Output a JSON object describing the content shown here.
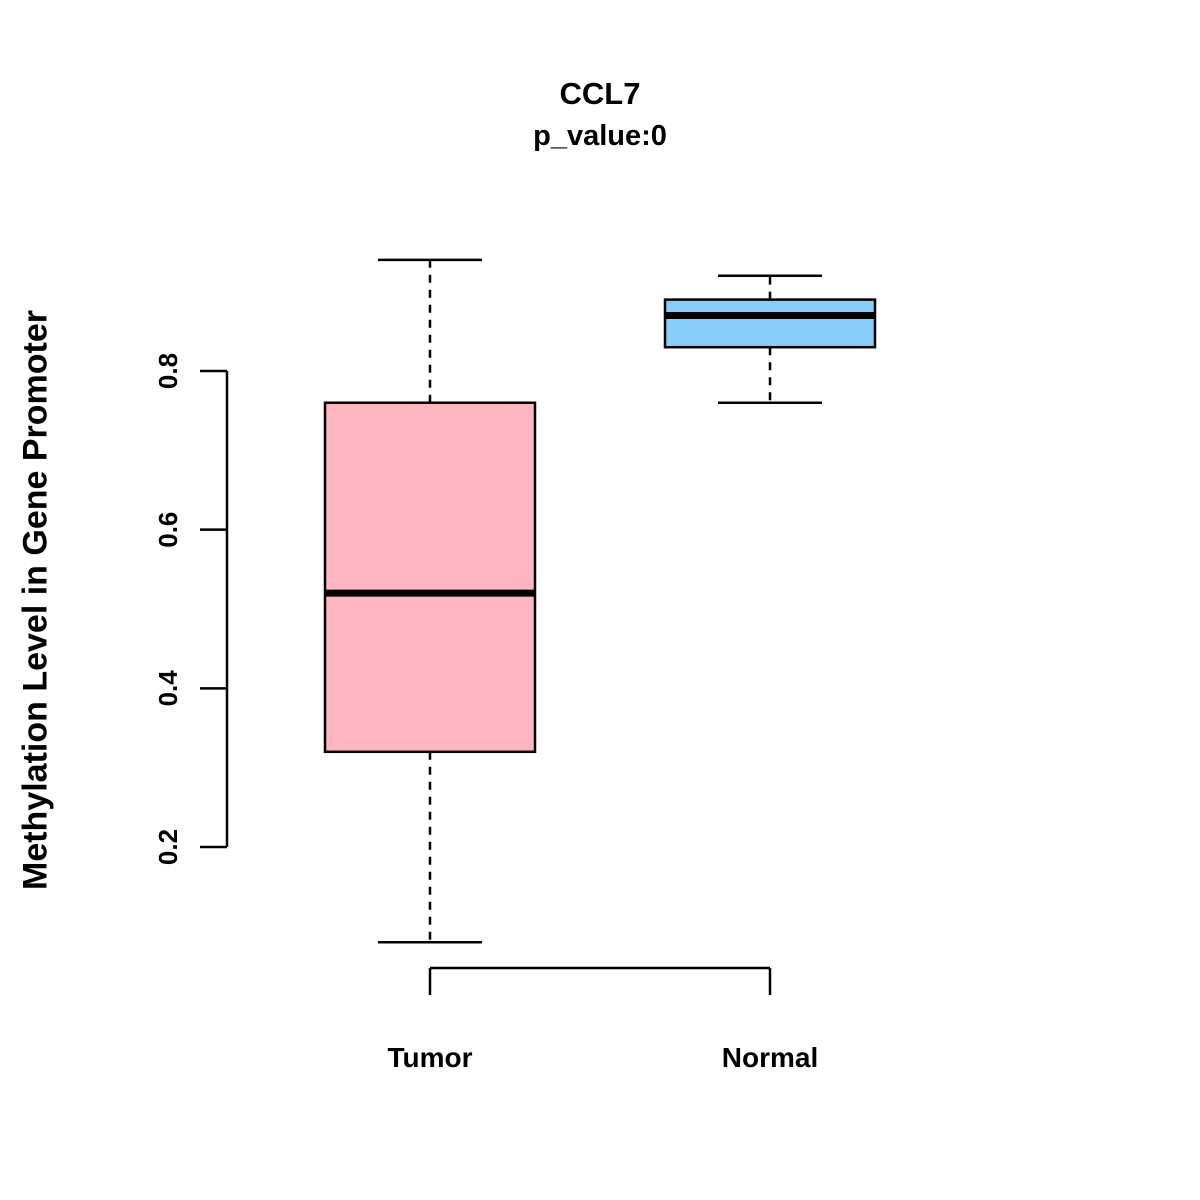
{
  "title": "CCL7",
  "subtitle": "p_value:0",
  "ylabel": "Methylation Level in Gene Promoter",
  "chart_data": {
    "type": "boxplot",
    "title": "CCL7",
    "subtitle": "p_value:0",
    "ylabel": "Methylation Level in Gene Promoter",
    "xlabel": "",
    "categories": [
      "Tumor",
      "Normal"
    ],
    "yticks": [
      0.2,
      0.4,
      0.6,
      0.8
    ],
    "ylim": [
      0.05,
      0.97
    ],
    "grid": false,
    "legend": "none",
    "series": [
      {
        "name": "Tumor",
        "whisker_low": 0.08,
        "q1": 0.32,
        "median": 0.52,
        "q3": 0.76,
        "whisker_high": 0.94,
        "fill_color": "#FFB6C1"
      },
      {
        "name": "Normal",
        "whisker_low": 0.76,
        "q1": 0.83,
        "median": 0.87,
        "q3": 0.89,
        "whisker_high": 0.92,
        "fill_color": "#87CEFA"
      }
    ],
    "stroke_color": "#000000",
    "background_color": "#FFFFFF"
  }
}
